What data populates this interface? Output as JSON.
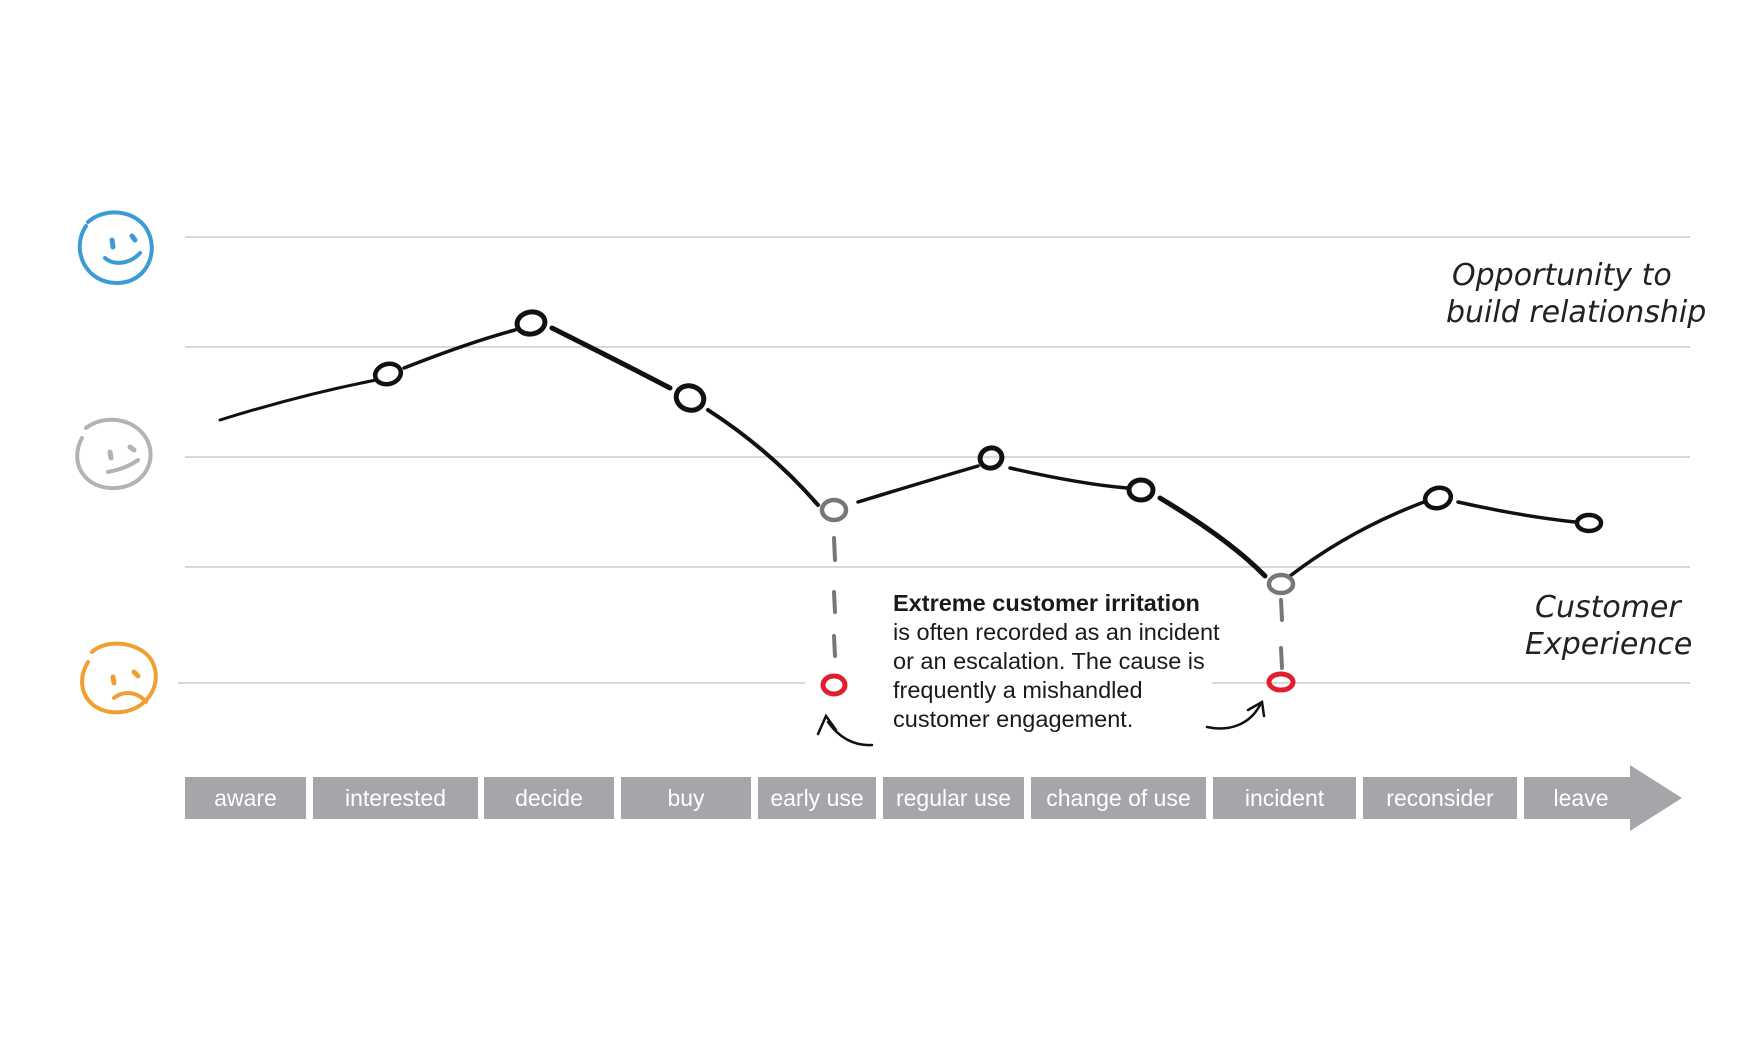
{
  "opportunity_note": {
    "line1": "Opportunity to",
    "line2": "build relationship"
  },
  "curve_label": {
    "line1": "Customer",
    "line2": "Experience"
  },
  "callout": {
    "bold": "Extreme customer irritation",
    "rest": " is often recorded as an incident or an escalation. The cause is frequently a mishandled customer engagement."
  },
  "faces": [
    {
      "name": "happy-face-icon",
      "mood": "happy",
      "color": "#3a9bd5"
    },
    {
      "name": "neutral-face-icon",
      "mood": "neutral",
      "color": "#b3b3b3"
    },
    {
      "name": "sad-face-icon",
      "mood": "sad",
      "color": "#f0a030"
    }
  ],
  "stages": [
    "aware",
    "interested",
    "decide",
    "buy",
    "early use",
    "regular use",
    "change of use",
    "incident",
    "reconsider",
    "leave"
  ],
  "colors": {
    "stage_bar": "#a5a6a9",
    "curve": "#111111",
    "neutral_point": "#777777",
    "incident_point": "#e01e2e",
    "grid": "#cccccc"
  }
}
